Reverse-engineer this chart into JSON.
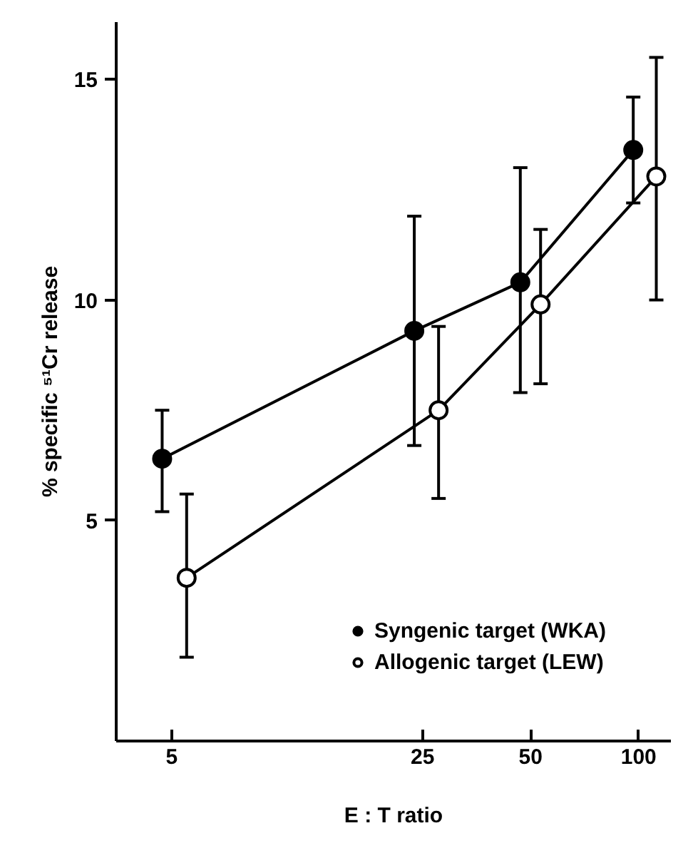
{
  "chart_data": {
    "type": "line",
    "xlabel": "E : T ratio",
    "ylabel": "% specific ⁵¹Cr release",
    "series": [
      {
        "name": "Syngenic target (WKA)",
        "color": "#000000",
        "marker": "circle",
        "x": [
          4.7,
          23.7,
          46.8,
          96.6
        ],
        "values": [
          6.4,
          9.3,
          10.4,
          13.4
        ],
        "errors": [
          [
            5.2,
            7.5
          ],
          [
            6.7,
            11.9
          ],
          [
            7.9,
            13.0
          ],
          [
            12.2,
            14.6
          ]
        ]
      },
      {
        "name": "Allogenic target (LEW)",
        "color": "#000000",
        "marker": "circle_open",
        "x": [
          5.5,
          27.7,
          53.3,
          112
        ],
        "values": [
          3.7,
          7.5,
          9.9,
          12.8
        ],
        "errors": [
          [
            1.9,
            5.6
          ],
          [
            5.5,
            9.4
          ],
          [
            8.1,
            11.6
          ],
          [
            10.0,
            15.5
          ]
        ]
      }
    ],
    "log": "x",
    "xlim": [
      3.5,
      123
    ],
    "ylim": [
      0,
      16.3
    ],
    "xticks": [
      5,
      25,
      50,
      100
    ],
    "yticks": [
      5,
      10,
      15
    ],
    "grid": false,
    "legend": "bottom right",
    "line_style": "solid"
  }
}
